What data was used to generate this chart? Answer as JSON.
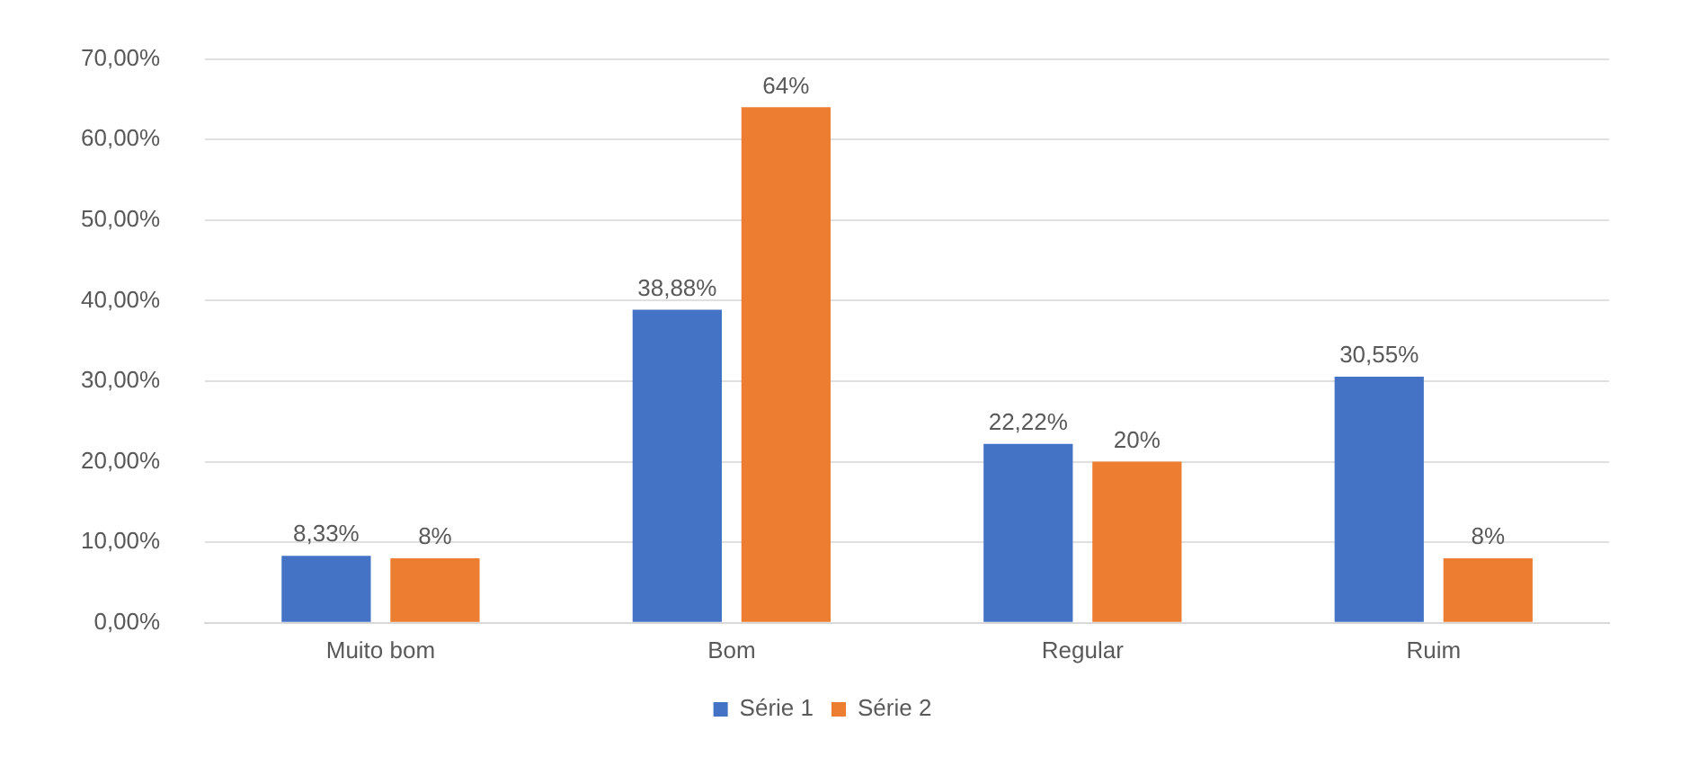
{
  "chart_data": {
    "type": "bar",
    "categories": [
      "Muito bom",
      "Bom",
      "Regular",
      "Ruim"
    ],
    "series": [
      {
        "name": "Série 1",
        "color": "#4472c4",
        "values": [
          8.33,
          38.88,
          22.22,
          30.55
        ],
        "value_labels": [
          "8,33%",
          "38,88%",
          "22,22%",
          "30,55%"
        ]
      },
      {
        "name": "Série 2",
        "color": "#ed7d31",
        "values": [
          8,
          64,
          20,
          8
        ],
        "value_labels": [
          "8%",
          "64%",
          "20%",
          "8%"
        ]
      }
    ],
    "ylim": [
      0,
      70
    ],
    "yticks": [
      {
        "value": 0,
        "label": "0,00%"
      },
      {
        "value": 10,
        "label": "10,00%"
      },
      {
        "value": 20,
        "label": "20,00%"
      },
      {
        "value": 30,
        "label": "30,00%"
      },
      {
        "value": 40,
        "label": "40,00%"
      },
      {
        "value": 50,
        "label": "50,00%"
      },
      {
        "value": 60,
        "label": "60,00%"
      },
      {
        "value": 70,
        "label": "70,00%"
      }
    ],
    "grid": "y",
    "legend": "bottom"
  }
}
